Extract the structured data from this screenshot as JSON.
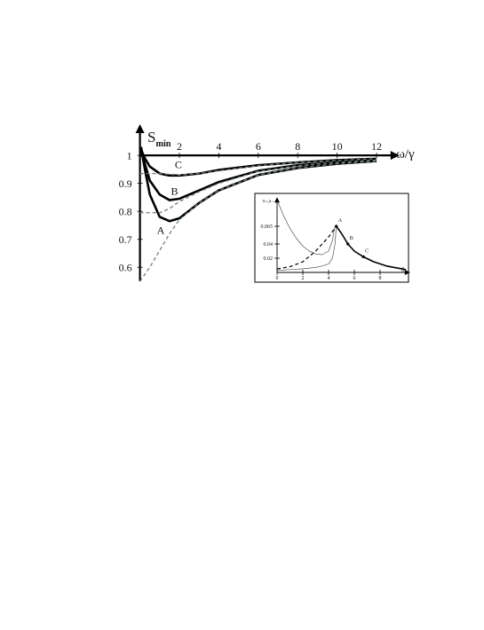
{
  "chart_data": [
    {
      "type": "line",
      "y_label": {
        "main": "S",
        "sub": "min"
      },
      "x_label": "ω/γ",
      "xlim": [
        0,
        12.8
      ],
      "ylim": [
        0.55,
        1.086
      ],
      "x_axis_crosses": 1,
      "xticks": [
        2,
        4,
        6,
        8,
        10,
        12
      ],
      "yticks": [
        0.6,
        0.7,
        0.8,
        0.9,
        1
      ],
      "series": [
        {
          "name": "A",
          "color": "#000000",
          "line_style": "solid",
          "line_width": 2.6,
          "x": [
            0.05,
            0.25,
            0.5,
            1,
            1.5,
            2,
            3,
            4,
            6,
            8,
            10,
            12
          ],
          "values": [
            1.03,
            0.95,
            0.86,
            0.78,
            0.765,
            0.775,
            0.83,
            0.875,
            0.93,
            0.955,
            0.97,
            0.98
          ]
        },
        {
          "name": "B",
          "color": "#000000",
          "line_style": "solid",
          "line_width": 2.6,
          "x": [
            0.05,
            0.25,
            0.5,
            1,
            1.5,
            2,
            3,
            4,
            6,
            8,
            10,
            12
          ],
          "values": [
            1.03,
            0.97,
            0.91,
            0.86,
            0.84,
            0.845,
            0.875,
            0.905,
            0.945,
            0.965,
            0.975,
            0.983
          ]
        },
        {
          "name": "C",
          "color": "#000000",
          "line_style": "solid",
          "line_width": 2.6,
          "x": [
            0.05,
            0.25,
            0.5,
            1,
            1.5,
            2,
            3,
            4,
            6,
            8,
            10,
            12
          ],
          "values": [
            1.02,
            0.99,
            0.96,
            0.935,
            0.928,
            0.928,
            0.935,
            0.948,
            0.965,
            0.975,
            0.983,
            0.988
          ]
        },
        {
          "color": "#6f7f7a",
          "line_style": "dashed",
          "line_width": 1.3,
          "x": [
            0,
            0.5,
            1,
            1.5,
            2,
            3,
            4,
            6,
            8,
            10,
            12
          ],
          "values": [
            0.55,
            0.6,
            0.66,
            0.72,
            0.77,
            0.83,
            0.875,
            0.93,
            0.955,
            0.97,
            0.98
          ]
        },
        {
          "color": "#6f7f7a",
          "line_style": "dashed",
          "line_width": 1.3,
          "x": [
            0,
            1,
            1.5,
            2,
            3,
            4,
            6,
            8,
            10,
            12
          ],
          "values": [
            0.795,
            0.795,
            0.81,
            0.835,
            0.87,
            0.9,
            0.943,
            0.963,
            0.975,
            0.983
          ]
        },
        {
          "color": "#6f7f7a",
          "line_style": "dashed",
          "line_width": 1.3,
          "x": [
            0,
            1,
            2,
            3,
            4,
            6,
            8,
            10,
            12
          ],
          "values": [
            0.935,
            0.935,
            0.93,
            0.935,
            0.945,
            0.963,
            0.975,
            0.982,
            0.988
          ]
        }
      ],
      "annotations": [
        {
          "text": "A",
          "x": 1.05,
          "y": 0.72
        },
        {
          "text": "B",
          "x": 1.75,
          "y": 0.86
        },
        {
          "text": "C",
          "x": 1.95,
          "y": 0.955
        }
      ]
    },
    {
      "type": "line",
      "y_label": {
        "main": "s₊,s₋"
      },
      "x_label": {
        "main": "δ",
        "sub": "c"
      },
      "xlim": [
        0,
        10
      ],
      "ylim": [
        0,
        0.1
      ],
      "x_axis_crosses": 0,
      "xticks": [
        0,
        2,
        4,
        6,
        8
      ],
      "yticks": [
        0.02,
        0.04,
        0.065
      ],
      "series": [
        {
          "color": "#555555",
          "line_style": "solid",
          "line_width": 0.7,
          "x": [
            0.05,
            0.5,
            1,
            1.5,
            2,
            2.5,
            3,
            3.5,
            4,
            4.3,
            4.5
          ],
          "values": [
            0.1,
            0.08,
            0.062,
            0.048,
            0.037,
            0.03,
            0.026,
            0.025,
            0.03,
            0.045,
            0.065
          ]
        },
        {
          "color": "#555555",
          "line_style": "solid",
          "line_width": 0.7,
          "x": [
            0,
            1,
            2,
            3,
            3.5,
            4,
            4.3,
            4.5,
            4.6
          ],
          "values": [
            0.003,
            0.004,
            0.005,
            0.007,
            0.009,
            0.012,
            0.02,
            0.04,
            0.065
          ]
        },
        {
          "color": "#000000",
          "line_style": "dashed",
          "line_width": 1.2,
          "x": [
            0,
            1,
            2,
            3,
            4,
            4.6
          ],
          "values": [
            0.005,
            0.008,
            0.015,
            0.03,
            0.05,
            0.065
          ]
        },
        {
          "color": "#000000",
          "line_style": "solid",
          "line_width": 1.6,
          "x": [
            4.6,
            5,
            5.5,
            6,
            6.7,
            7.5,
            8.5,
            10
          ],
          "values": [
            0.065,
            0.055,
            0.04,
            0.03,
            0.022,
            0.015,
            0.009,
            0.004
          ]
        }
      ],
      "annotations": [
        {
          "text": "A",
          "x": 4.6,
          "y": 0.065
        },
        {
          "text": "B",
          "x": 5.5,
          "y": 0.04
        },
        {
          "text": "C",
          "x": 6.7,
          "y": 0.022
        }
      ]
    }
  ]
}
